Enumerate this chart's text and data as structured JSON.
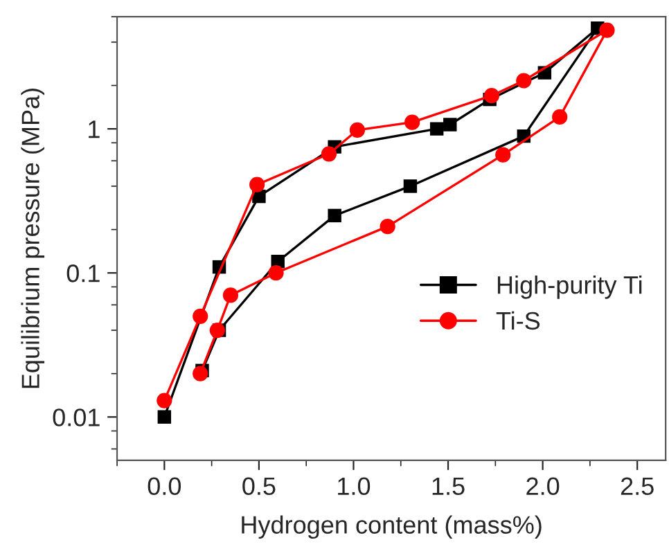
{
  "chart_data": {
    "type": "line",
    "xlabel": "Hydrogen content (mass%)",
    "ylabel": "Equilibrium pressure (MPa)",
    "log": "y",
    "xlim": [
      -0.25,
      2.65
    ],
    "ylim": [
      0.005,
      6
    ],
    "xticks": [
      {
        "value": 0,
        "label": "0.0"
      },
      {
        "value": 0.5,
        "label": "0.5"
      },
      {
        "value": 1,
        "label": "1.0"
      },
      {
        "value": 1.5,
        "label": "1.5"
      },
      {
        "value": 2,
        "label": "2.0"
      },
      {
        "value": 2.5,
        "label": "2.5"
      }
    ],
    "yticks": [
      0.01,
      0.1,
      1
    ],
    "grid": false,
    "legend": "right",
    "series": [
      {
        "name": "High-purity Ti",
        "color": "#000000",
        "marker": "square",
        "x": [
          0.2,
          0.29,
          0.6,
          0.9,
          1.3,
          1.9,
          2.29,
          2.01,
          1.72,
          1.51,
          1.44,
          0.9,
          0.5,
          0.29,
          0.0
        ],
        "values": [
          0.021,
          0.04,
          0.12,
          0.25,
          0.4,
          0.89,
          5.0,
          2.45,
          1.6,
          1.07,
          1.0,
          0.75,
          0.34,
          0.11,
          0.01
        ]
      },
      {
        "name": "Ti-S",
        "color": "#ff0000",
        "marker": "circle",
        "x": [
          0.19,
          0.28,
          0.35,
          0.59,
          1.18,
          1.79,
          2.09,
          2.34,
          1.9,
          1.73,
          1.31,
          1.02,
          0.87,
          0.49,
          0.19,
          0.0
        ],
        "values": [
          0.02,
          0.04,
          0.07,
          0.1,
          0.21,
          0.66,
          1.21,
          4.84,
          2.16,
          1.7,
          1.11,
          0.98,
          0.67,
          0.41,
          0.05,
          0.013
        ]
      }
    ]
  }
}
